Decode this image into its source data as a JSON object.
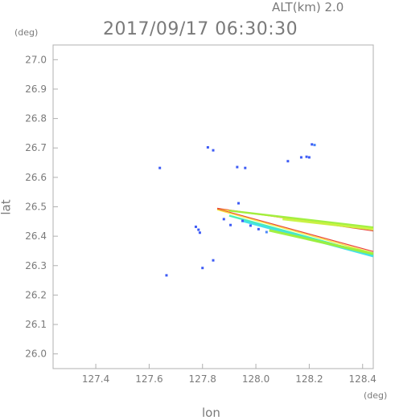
{
  "header": {
    "altitude_label": "ALT(km) 2.0",
    "timestamp": "2017/09/17 06:30:30"
  },
  "axes": {
    "y_unit": "(deg)",
    "x_unit": "(deg)",
    "y_title": "lat",
    "x_title": "lon"
  },
  "chart_data": {
    "type": "scatter",
    "title": "2017/09/17 06:30:30",
    "subtitle": "ALT(km) 2.0",
    "xlabel": "lon",
    "ylabel": "lat",
    "xlim": [
      127.24,
      128.44
    ],
    "ylim": [
      25.95,
      27.05
    ],
    "x_ticks": [
      127.4,
      127.6,
      127.8,
      128.0,
      128.2,
      128.4
    ],
    "x_tick_labels": [
      "127.4",
      "127.6",
      "127.8",
      "128.0",
      "128.2",
      "128.4"
    ],
    "y_ticks": [
      26.0,
      26.1,
      26.2,
      26.3,
      26.4,
      26.5,
      26.6,
      26.7,
      26.8,
      26.9,
      27.0
    ],
    "y_tick_labels": [
      "26.0",
      "26.1",
      "26.2",
      "26.3",
      "26.4",
      "26.5",
      "26.6",
      "26.7",
      "26.8",
      "26.9",
      "27.0"
    ],
    "grid": false,
    "colors": {
      "frame": "#b0b0b0",
      "text": "#7a7a7a"
    },
    "echoes": [
      {
        "lon": 128.21,
        "lat": 26.712,
        "color": "#3d5bf5"
      },
      {
        "lon": 128.22,
        "lat": 26.71,
        "color": "#4a86f8"
      },
      {
        "lon": 128.19,
        "lat": 26.67,
        "color": "#3d5bf5"
      },
      {
        "lon": 128.2,
        "lat": 26.668,
        "color": "#3d5bf5"
      },
      {
        "lon": 128.17,
        "lat": 26.668,
        "color": "#3d5bf5"
      },
      {
        "lon": 128.12,
        "lat": 26.655,
        "color": "#3d5bf5"
      },
      {
        "lon": 127.64,
        "lat": 26.632,
        "color": "#3d5bf5"
      },
      {
        "lon": 127.93,
        "lat": 26.635,
        "color": "#3d5bf5"
      },
      {
        "lon": 127.96,
        "lat": 26.632,
        "color": "#3d5bf5"
      },
      {
        "lon": 127.82,
        "lat": 26.702,
        "color": "#3d5bf5"
      },
      {
        "lon": 127.84,
        "lat": 26.692,
        "color": "#3d5bf5"
      },
      {
        "lon": 127.935,
        "lat": 26.512,
        "color": "#3d5bf5"
      },
      {
        "lon": 127.775,
        "lat": 26.432,
        "color": "#3d5bf5"
      },
      {
        "lon": 127.785,
        "lat": 26.422,
        "color": "#3d5bf5"
      },
      {
        "lon": 127.79,
        "lat": 26.412,
        "color": "#3d5bf5"
      },
      {
        "lon": 127.905,
        "lat": 26.438,
        "color": "#3d5bf5"
      },
      {
        "lon": 127.88,
        "lat": 26.458,
        "color": "#3d5bf5"
      },
      {
        "lon": 127.84,
        "lat": 26.318,
        "color": "#3d5bf5"
      },
      {
        "lon": 127.8,
        "lat": 26.292,
        "color": "#3d5bf5"
      },
      {
        "lon": 127.665,
        "lat": 26.267,
        "color": "#3d5bf5"
      },
      {
        "lon": 127.95,
        "lat": 26.452,
        "color": "#3d5bf5"
      },
      {
        "lon": 127.98,
        "lat": 26.436,
        "color": "#3d5bf5"
      },
      {
        "lon": 128.01,
        "lat": 26.424,
        "color": "#3d5bf5"
      },
      {
        "lon": 128.04,
        "lat": 26.414,
        "color": "#4a86f8"
      }
    ],
    "streaks": [
      {
        "name": "upper-band",
        "layers": [
          {
            "color": "#e83a2a",
            "points": [
              [
                127.855,
                26.495
              ],
              [
                128.44,
                26.418
              ]
            ]
          },
          {
            "color": "#f5e23a",
            "points": [
              [
                127.855,
                26.492
              ],
              [
                128.44,
                26.424
              ]
            ]
          },
          {
            "color": "#9ef03a",
            "points": [
              [
                127.9,
                26.487
              ],
              [
                128.44,
                26.43
              ]
            ]
          },
          {
            "color": "#c8f542",
            "points": [
              [
                128.1,
                26.458
              ],
              [
                128.44,
                26.424
              ]
            ]
          }
        ]
      },
      {
        "name": "lower-band",
        "layers": [
          {
            "color": "#e83a2a",
            "points": [
              [
                127.855,
                26.493
              ],
              [
                128.44,
                26.348
              ]
            ]
          },
          {
            "color": "#f5e23a",
            "points": [
              [
                127.855,
                26.49
              ],
              [
                128.44,
                26.343
              ]
            ]
          },
          {
            "color": "#42f0b0",
            "points": [
              [
                127.9,
                26.47
              ],
              [
                128.44,
                26.336
              ]
            ]
          },
          {
            "color": "#3ddfe8",
            "points": [
              [
                127.95,
                26.452
              ],
              [
                128.44,
                26.332
              ]
            ]
          },
          {
            "color": "#9ef03a",
            "points": [
              [
                128.05,
                26.42
              ],
              [
                128.44,
                26.34
              ]
            ]
          }
        ]
      }
    ]
  }
}
